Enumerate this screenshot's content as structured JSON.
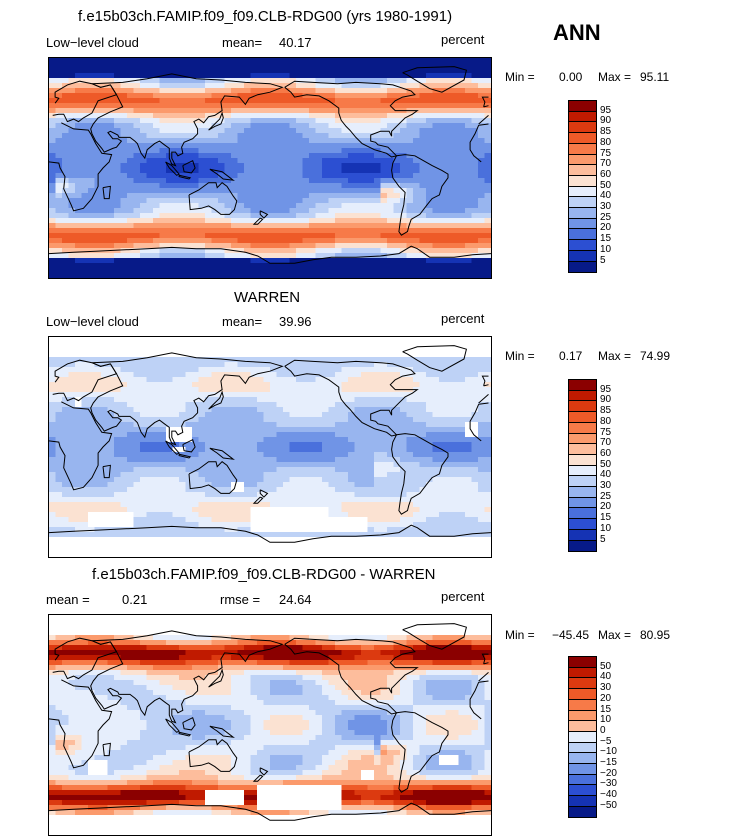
{
  "season": "ANN",
  "panels": [
    {
      "id": "model",
      "title": "f.e15b03ch.FAMIP.f09_f09.CLB-RDG00 (yrs 1980-1991)",
      "left_label": "Low−level cloud",
      "mid_label": "mean=",
      "mid_value": "40.17",
      "right_label": "percent",
      "min_label": "Min =",
      "min_value": "0.00",
      "max_label": "Max =",
      "max_value": "95.11",
      "colorbar_labels": [
        "95",
        "90",
        "85",
        "80",
        "75",
        "70",
        "60",
        "50",
        "40",
        "30",
        "25",
        "20",
        "15",
        "10",
        "5"
      ]
    },
    {
      "id": "obs",
      "title": "WARREN",
      "left_label": "Low−level cloud",
      "mid_label": "mean=",
      "mid_value": "39.96",
      "right_label": "percent",
      "min_label": "Min =",
      "min_value": "0.17",
      "max_label": "Max =",
      "max_value": "74.99",
      "colorbar_labels": [
        "95",
        "90",
        "85",
        "80",
        "75",
        "70",
        "60",
        "50",
        "40",
        "30",
        "25",
        "20",
        "15",
        "10",
        "5"
      ]
    },
    {
      "id": "diff",
      "title": "f.e15b03ch.FAMIP.f09_f09.CLB-RDG00 - WARREN",
      "left_label": "mean =",
      "left_value": "0.21",
      "mid_label": "rmse =",
      "mid_value": "24.64",
      "right_label": "percent",
      "min_label": "Min =",
      "min_value": "−45.45",
      "max_label": "Max =",
      "max_value": "80.95",
      "colorbar_labels": [
        "50",
        "40",
        "30",
        "20",
        "15",
        "10",
        "0",
        "−5",
        "−10",
        "−15",
        "−20",
        "−30",
        "−40",
        "−50"
      ]
    }
  ],
  "colors": {
    "scale_16": [
      "#8b0000",
      "#c01a00",
      "#dc3a10",
      "#ee5a28",
      "#f77a48",
      "#fb9a6c",
      "#fdbd9c",
      "#fbe2d2",
      "#e6eefc",
      "#bed2f6",
      "#98b5ef",
      "#7094e6",
      "#4a70dc",
      "#2c4fd2",
      "#1533b4",
      "#071a88"
    ],
    "land": "#000000"
  }
}
